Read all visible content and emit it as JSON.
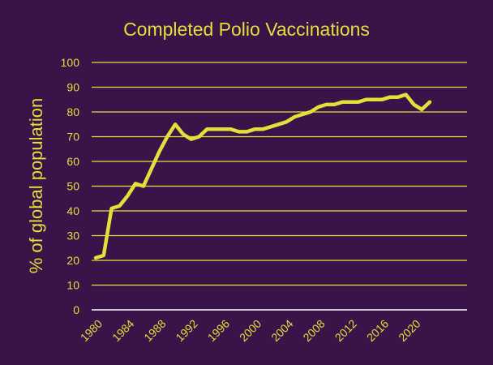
{
  "chart_data": {
    "type": "line",
    "title": "Completed Polio Vaccinations",
    "xlabel": "",
    "ylabel": "% of global population",
    "ylim": [
      0,
      100
    ],
    "yticks": [
      0,
      10,
      20,
      30,
      40,
      50,
      60,
      70,
      80,
      90,
      100
    ],
    "xlim": [
      1980,
      2022
    ],
    "xticks": [
      1980,
      1984,
      1988,
      1992,
      1996,
      2000,
      2004,
      2008,
      2012,
      2016,
      2020
    ],
    "grid": true,
    "legend": "none",
    "colors": {
      "background": "#3a1348",
      "line": "#e6df3a",
      "grid": "#e6df3a",
      "baseline": "#ffffff"
    },
    "series": [
      {
        "x": [
          1980,
          1981,
          1982,
          1983,
          1984,
          1985,
          1986,
          1987,
          1988,
          1989,
          1990,
          1991,
          1992,
          1993,
          1994,
          1995,
          1996,
          1997,
          1998,
          1999,
          2000,
          2001,
          2002,
          2003,
          2004,
          2005,
          2006,
          2007,
          2008,
          2009,
          2010,
          2011,
          2012,
          2013,
          2014,
          2015,
          2016,
          2017,
          2018,
          2019,
          2020,
          2021,
          2022
        ],
        "values": [
          21,
          22,
          41,
          42,
          46,
          51,
          50,
          57,
          64,
          70,
          75,
          71,
          69,
          70,
          73,
          73,
          73,
          73,
          72,
          72,
          73,
          73,
          74,
          75,
          76,
          78,
          79,
          80,
          82,
          83,
          83,
          84,
          84,
          84,
          85,
          85,
          85,
          86,
          86,
          87,
          83,
          81,
          84
        ]
      }
    ]
  }
}
